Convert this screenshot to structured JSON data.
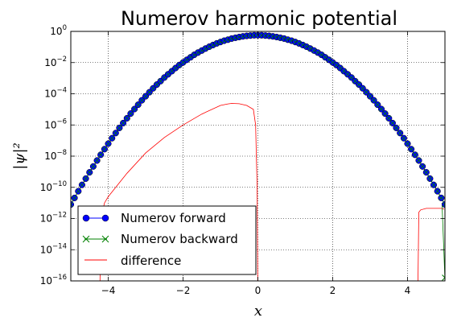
{
  "chart_data": {
    "type": "line",
    "title": "Numerov harmonic potential",
    "xlabel": "x",
    "ylabel": "|ψ|²",
    "x_range": [
      -5,
      5
    ],
    "y_scale": "log",
    "y_range": [
      1e-16,
      1
    ],
    "x_ticks": [
      "−4",
      "−2",
      "0",
      "2",
      "4"
    ],
    "x_tick_values": [
      -4,
      -2,
      0,
      2,
      4
    ],
    "y_tick_exponents": [
      0,
      -2,
      -4,
      -6,
      -8,
      -10,
      -12,
      -14,
      -16
    ],
    "grid": true,
    "legend_placement": "lower-left",
    "series": [
      {
        "name": "Numerov forward",
        "color": "#0000ff",
        "marker": "filled-circle",
        "description_of_values": "|psi|^2 = 0.5642 * exp(-x^2) sampled every 0.1",
        "x": [
          -5.0,
          -4.9,
          -4.8,
          -4.7,
          -4.6,
          -4.5,
          -4.4,
          -4.3,
          -4.2,
          -4.1,
          -4.0,
          -3.9,
          -3.8,
          -3.7,
          -3.6,
          -3.5,
          -3.4,
          -3.3,
          -3.2,
          -3.1,
          -3.0,
          -2.9,
          -2.8,
          -2.7,
          -2.6,
          -2.5,
          -2.4,
          -2.3,
          -2.2,
          -2.1,
          -2.0,
          -1.9,
          -1.8,
          -1.7,
          -1.6,
          -1.5,
          -1.4,
          -1.3,
          -1.2,
          -1.1,
          -1.0,
          -0.9,
          -0.8,
          -0.7,
          -0.6,
          -0.5,
          -0.4,
          -0.3,
          -0.2,
          -0.1,
          0.0,
          0.1,
          0.2,
          0.3,
          0.4,
          0.5,
          0.6,
          0.7,
          0.8,
          0.9,
          1.0,
          1.1,
          1.2,
          1.3,
          1.4,
          1.5,
          1.6,
          1.7,
          1.8,
          1.9,
          2.0,
          2.1,
          2.2,
          2.3,
          2.4,
          2.5,
          2.6,
          2.7,
          2.8,
          2.9,
          3.0,
          3.1,
          3.2,
          3.3,
          3.4,
          3.5,
          3.6,
          3.7,
          3.8,
          3.9,
          4.0,
          4.1,
          4.2,
          4.3,
          4.4,
          4.5,
          4.6,
          4.7,
          4.8,
          4.9,
          5.0
        ],
        "log10_y": [
          -11.1,
          -10.68,
          -10.25,
          -9.84,
          -9.44,
          -9.04,
          -8.66,
          -8.28,
          -7.91,
          -7.55,
          -7.2,
          -6.85,
          -6.52,
          -6.19,
          -5.88,
          -5.57,
          -5.27,
          -4.98,
          -4.7,
          -4.42,
          -4.16,
          -3.9,
          -3.65,
          -3.41,
          -3.19,
          -2.96,
          -2.75,
          -2.55,
          -2.35,
          -2.16,
          -1.99,
          -1.82,
          -1.66,
          -1.5,
          -1.36,
          -1.23,
          -1.1,
          -0.98,
          -0.87,
          -0.77,
          -0.68,
          -0.6,
          -0.53,
          -0.46,
          -0.41,
          -0.36,
          -0.32,
          -0.29,
          -0.27,
          -0.25,
          -0.25,
          -0.25,
          -0.27,
          -0.29,
          -0.32,
          -0.36,
          -0.41,
          -0.46,
          -0.53,
          -0.6,
          -0.68,
          -0.77,
          -0.87,
          -0.98,
          -1.1,
          -1.23,
          -1.36,
          -1.5,
          -1.66,
          -1.82,
          -1.99,
          -2.16,
          -2.35,
          -2.55,
          -2.75,
          -2.96,
          -3.19,
          -3.41,
          -3.65,
          -3.9,
          -4.16,
          -4.42,
          -4.7,
          -4.98,
          -5.27,
          -5.57,
          -5.88,
          -6.19,
          -6.52,
          -6.85,
          -7.2,
          -7.55,
          -7.91,
          -8.28,
          -8.66,
          -9.04,
          -9.44,
          -9.84,
          -10.25,
          -10.68,
          -11.1
        ]
      },
      {
        "name": "Numerov backward",
        "color": "#008000",
        "marker": "x",
        "description_of_values": "same curve as forward, drawn with x markers; marker visible at right edge x=5",
        "x": [
          5.0
        ],
        "log10_y": [
          -16.0
        ]
      },
      {
        "name": "difference",
        "color": "#ff0000",
        "marker": "none",
        "segments": [
          {
            "x": [
              -4.22,
              -4.2,
              -4.15,
              -4.1,
              -4.0,
              -3.8,
              -3.5,
              -3.0,
              -2.5,
              -2.0,
              -1.5,
              -1.0,
              -0.8,
              -0.7,
              -0.5,
              -0.3,
              -0.12,
              -0.06,
              -0.04,
              -0.02,
              -0.005
            ],
            "log10_y": [
              -16.0,
              -12.0,
              -11.5,
              -11.0,
              -10.6,
              -10.0,
              -9.1,
              -7.8,
              -6.8,
              -6.0,
              -5.3,
              -4.75,
              -4.65,
              -4.62,
              -4.64,
              -4.75,
              -5.0,
              -6.0,
              -8.0,
              -10.0,
              -16.0
            ]
          },
          {
            "x": [
              4.28,
              4.3,
              4.35,
              4.5,
              4.7,
              4.9,
              4.98
            ],
            "log10_y": [
              -16.0,
              -11.6,
              -11.45,
              -11.35,
              -11.35,
              -11.35,
              -11.4
            ]
          }
        ]
      }
    ]
  }
}
